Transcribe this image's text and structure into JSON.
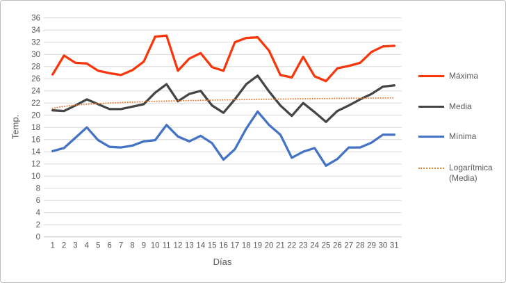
{
  "chart_data": {
    "type": "line",
    "title": "",
    "xlabel": "Días",
    "ylabel": "Temp.",
    "x": [
      1,
      2,
      3,
      4,
      5,
      6,
      7,
      8,
      9,
      10,
      11,
      12,
      13,
      14,
      15,
      16,
      17,
      18,
      19,
      20,
      21,
      22,
      23,
      24,
      25,
      26,
      27,
      28,
      29,
      30,
      31
    ],
    "series": [
      {
        "name": "Máxima",
        "color": "#F8360B",
        "values": [
          26.7,
          29.8,
          28.6,
          28.5,
          27.3,
          26.9,
          26.6,
          27.4,
          28.8,
          32.9,
          33.1,
          27.3,
          29.3,
          30.2,
          27.9,
          27.3,
          32.0,
          32.7,
          32.8,
          30.6,
          26.6,
          26.2,
          29.6,
          26.4,
          25.6,
          27.7,
          28.1,
          28.6,
          30.4,
          31.3,
          31.4
        ]
      },
      {
        "name": "Media",
        "color": "#454545",
        "values": [
          20.8,
          20.7,
          21.6,
          22.6,
          21.8,
          21.0,
          21.0,
          21.4,
          21.8,
          23.7,
          25.1,
          22.3,
          23.5,
          24.0,
          21.6,
          20.4,
          22.6,
          25.1,
          26.5,
          23.9,
          21.6,
          19.9,
          22.0,
          20.5,
          18.9,
          20.7,
          21.6,
          22.6,
          23.5,
          24.7,
          24.9
        ]
      },
      {
        "name": "Mínima",
        "color": "#4472C4",
        "values": [
          14.1,
          14.6,
          16.3,
          18.0,
          15.9,
          14.8,
          14.7,
          15.0,
          15.7,
          15.9,
          18.4,
          16.5,
          15.7,
          16.6,
          15.4,
          12.7,
          14.4,
          17.8,
          20.6,
          18.4,
          16.8,
          13.0,
          14.0,
          14.6,
          11.7,
          12.8,
          14.7,
          14.7,
          15.5,
          16.8,
          16.8
        ]
      }
    ],
    "trendline": {
      "name": "Logarítmica (Media)",
      "based_on_series": "Media",
      "type": "logarithmic",
      "color": "#ED7D31",
      "style": "dotted",
      "a": 21.1,
      "b": 0.51
    },
    "ylim": [
      0,
      36
    ],
    "ytick_step": 2,
    "grid": true,
    "legend_position": "right"
  },
  "colors": {
    "gridline": "#D9D9D9",
    "axis_line": "#BFBFBF",
    "axis_text": "#595959",
    "frame_border": "#BCBCBC",
    "background": "#FFFFFF"
  }
}
